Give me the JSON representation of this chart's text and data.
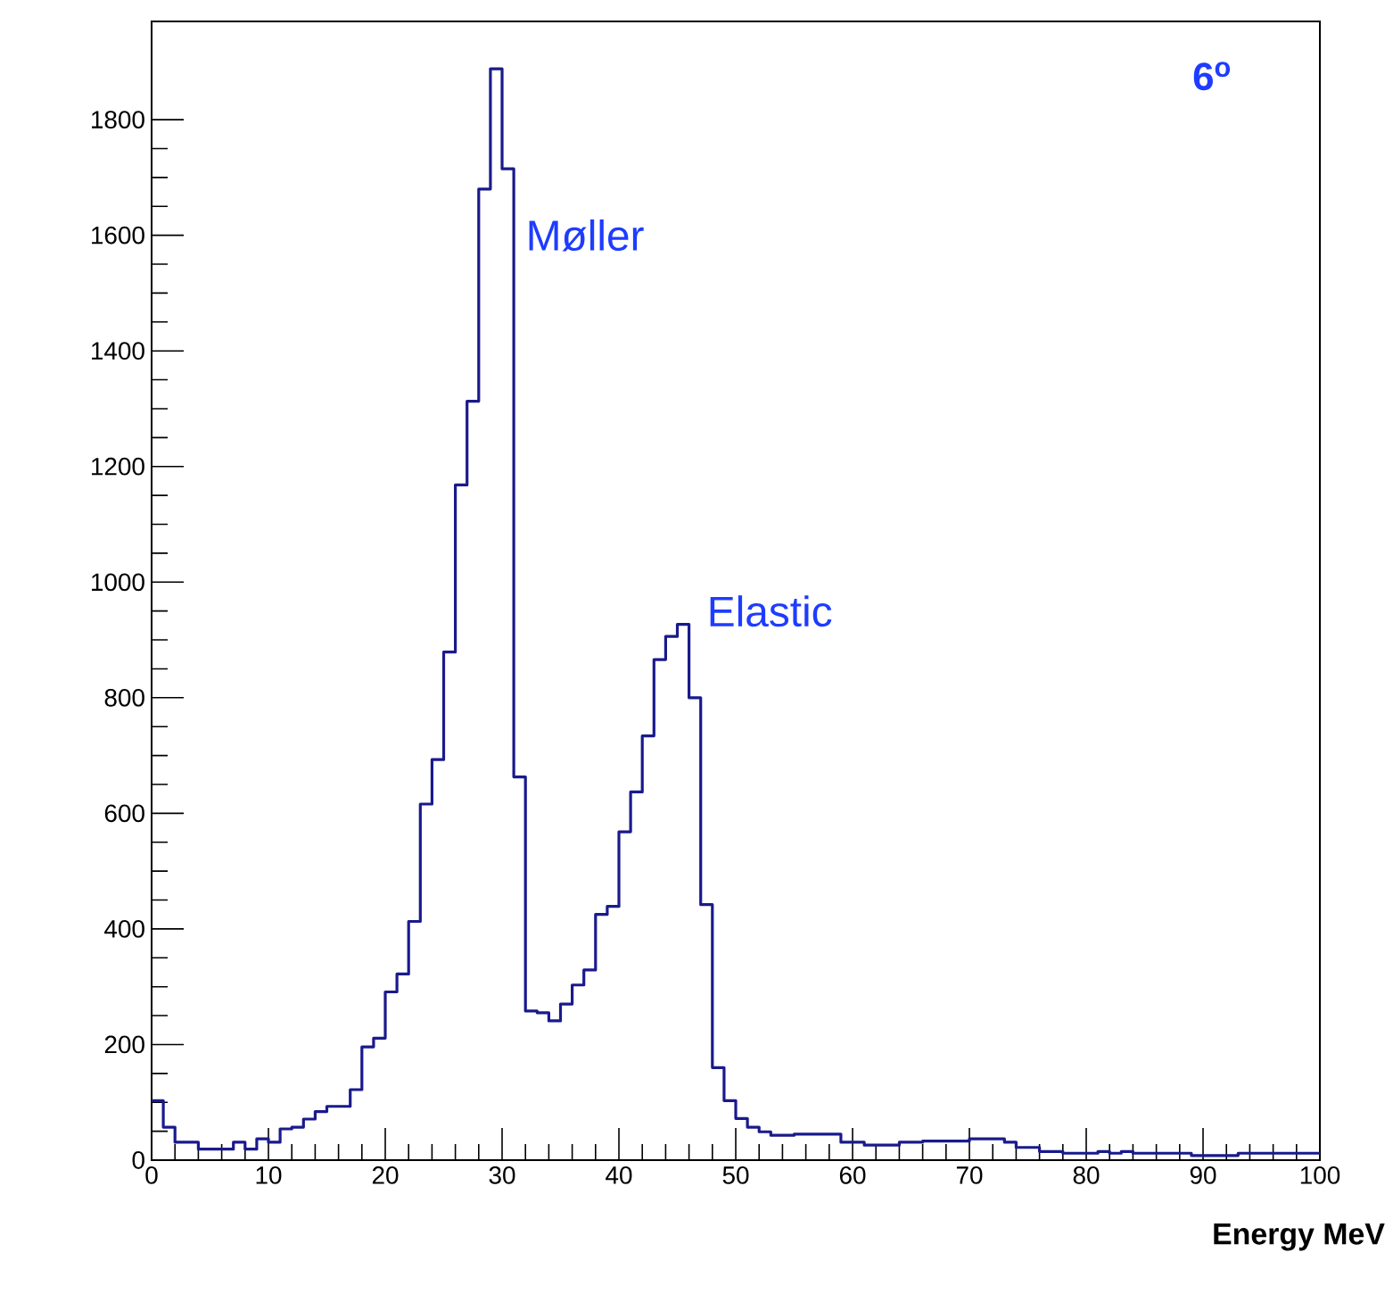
{
  "chart_data": {
    "type": "histogram",
    "xlabel": "Energy MeV",
    "bins": [
      0,
      1,
      2,
      3,
      4,
      5,
      6,
      7,
      8,
      9,
      10,
      11,
      12,
      13,
      14,
      15,
      16,
      17,
      18,
      19,
      20,
      21,
      22,
      23,
      24,
      25,
      26,
      27,
      28,
      29,
      30,
      31,
      32,
      33,
      34,
      35,
      36,
      37,
      38,
      39,
      40,
      41,
      42,
      43,
      44,
      45,
      46,
      47,
      48,
      49,
      50,
      51,
      52,
      53,
      54,
      55,
      56,
      57,
      58,
      59,
      60,
      61,
      62,
      63,
      64,
      65,
      66,
      67,
      68,
      69,
      70,
      71,
      72,
      73,
      74,
      75,
      76,
      77,
      78,
      79,
      80,
      81,
      82,
      83,
      84,
      85,
      86,
      87,
      88,
      89,
      90,
      91,
      92,
      93,
      94,
      95,
      96,
      97,
      98,
      99,
      100
    ],
    "values": [
      103,
      57,
      31,
      31,
      19,
      19,
      19,
      31,
      19,
      37,
      31,
      54,
      57,
      71,
      84,
      93,
      93,
      122,
      196,
      211,
      291,
      322,
      413,
      616,
      693,
      879,
      1168,
      1313,
      1680,
      1888,
      1715,
      663,
      258,
      255,
      241,
      270,
      303,
      329,
      425,
      439,
      568,
      637,
      734,
      866,
      906,
      927,
      800,
      442,
      160,
      103,
      72,
      57,
      49,
      43,
      43,
      45,
      45,
      45,
      45,
      31,
      31,
      26,
      26,
      26,
      31,
      31,
      33,
      33,
      33,
      33,
      37,
      37,
      37,
      31,
      22,
      22,
      15,
      15,
      12,
      12,
      12,
      15,
      12,
      15,
      12,
      12,
      12,
      12,
      12,
      8,
      8,
      8,
      8,
      12,
      12,
      12,
      12,
      12,
      12,
      12
    ],
    "color": "#1a1a8c",
    "xlim": [
      0,
      100
    ],
    "ylim": [
      0,
      1970
    ],
    "xticks": [
      0,
      10,
      20,
      30,
      40,
      50,
      60,
      70,
      80,
      90,
      100
    ],
    "yticks": [
      0,
      200,
      400,
      600,
      800,
      1000,
      1200,
      1400,
      1600,
      1800
    ],
    "grid": false,
    "annotations": [
      {
        "text": "Møller",
        "x": 31.5,
        "y": 1600
      },
      "Elastic",
      "6$^{o}$"
    ]
  }
}
